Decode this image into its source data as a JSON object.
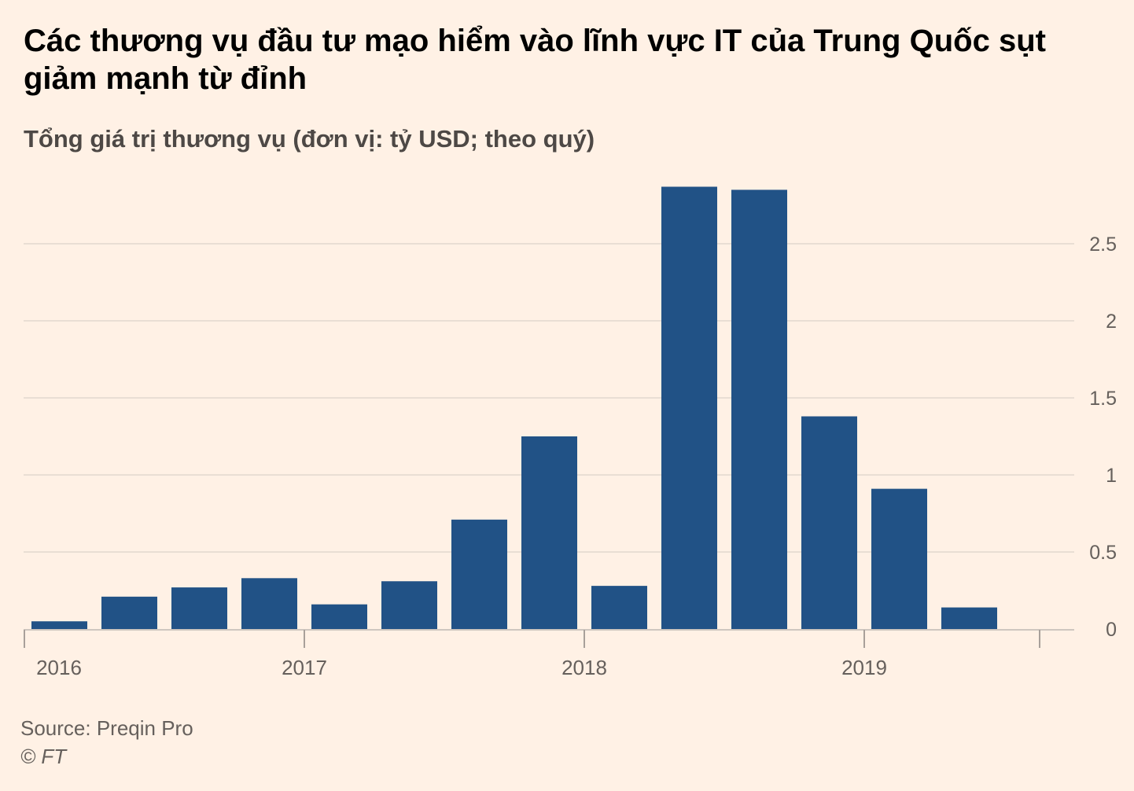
{
  "title": "Các thương vụ đầu tư mạo hiểm vào lĩnh vực IT của Trung Quốc sụt giảm mạnh từ đỉnh",
  "subtitle": "Tổng giá trị thương vụ (đơn vị: tỷ USD; theo quý)",
  "source": "Source: Preqin Pro",
  "copyright": "© FT",
  "colors": {
    "background": "#fff1e5",
    "bar": "#215286",
    "grid": "#e9ded4",
    "axis_text": "#66605c"
  },
  "chart_data": {
    "type": "bar",
    "title": "Các thương vụ đầu tư mạo hiểm vào lĩnh vực IT của Trung Quốc sụt giảm mạnh từ đỉnh",
    "subtitle": "Tổng giá trị thương vụ (đơn vị: tỷ USD; theo quý)",
    "xlabel": "",
    "ylabel": "",
    "categories": [
      "2016 Q1",
      "2016 Q2",
      "2016 Q3",
      "2016 Q4",
      "2017 Q1",
      "2017 Q2",
      "2017 Q3",
      "2017 Q4",
      "2018 Q1",
      "2018 Q2",
      "2018 Q3",
      "2018 Q4",
      "2019 Q1",
      "2019 Q2"
    ],
    "values": [
      0.05,
      0.21,
      0.27,
      0.33,
      0.16,
      0.31,
      0.71,
      1.25,
      0.28,
      2.87,
      2.85,
      1.38,
      0.91,
      0.14
    ],
    "x_tick_labels": [
      "2016",
      "2017",
      "2018",
      "2019"
    ],
    "y_ticks": [
      0,
      0.5,
      1,
      1.5,
      2,
      2.5
    ],
    "y_tick_labels": [
      "0",
      "0.5",
      "1",
      "1.5",
      "2",
      "2.5"
    ],
    "ylim": [
      0,
      2.87
    ],
    "grid": true,
    "y_axis_position": "right"
  }
}
